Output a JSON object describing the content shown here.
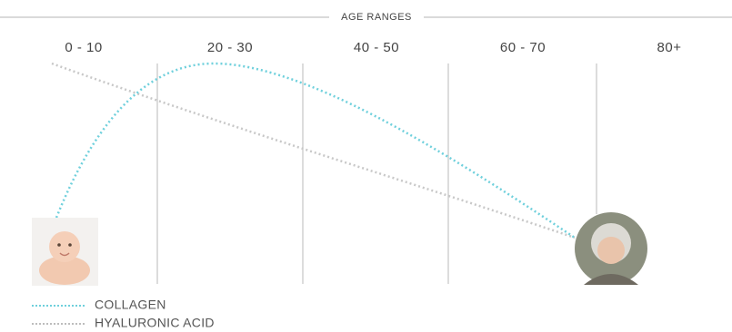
{
  "header": {
    "title": "AGE RANGES"
  },
  "columns": [
    "0 - 10",
    "20 - 30",
    "40 - 50",
    "60 - 70",
    "80+"
  ],
  "legend": [
    "COLLAGEN",
    "HYALURONIC ACID"
  ]
}
